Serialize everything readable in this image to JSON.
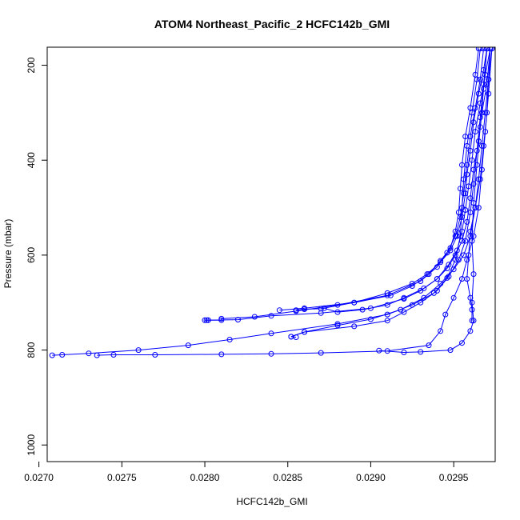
{
  "chart_data": {
    "type": "line",
    "title": "ATOM4 Northeast_Pacific_2 HCFC142b_GMI",
    "xlabel": "HCFC142b_GMI",
    "ylabel": "Pressure (mbar)",
    "xlim": [
      0.02705,
      0.02975
    ],
    "ylim": [
      1035,
      162
    ],
    "y_reversed": true,
    "xticks": [
      0.027,
      0.0275,
      0.028,
      0.0285,
      0.029,
      0.0295
    ],
    "xtick_labels": [
      "0.0270",
      "0.0275",
      "0.0280",
      "0.0285",
      "0.0290",
      "0.0295"
    ],
    "yticks": [
      200,
      400,
      600,
      800,
      1000
    ],
    "ytick_labels": [
      "200",
      "400",
      "600",
      "800",
      "1000"
    ],
    "color": "#0000ff",
    "markers": "open-circle",
    "series": [
      {
        "points": [
          [
            0.0297,
            165
          ],
          [
            0.02968,
            210
          ],
          [
            0.02965,
            260
          ],
          [
            0.02962,
            320
          ],
          [
            0.0296,
            380
          ],
          [
            0.02958,
            430
          ],
          [
            0.02957,
            470
          ],
          [
            0.02955,
            520
          ],
          [
            0.02952,
            560
          ],
          [
            0.02948,
            590
          ],
          [
            0.02942,
            615
          ],
          [
            0.02934,
            640
          ],
          [
            0.02925,
            660
          ],
          [
            0.0291,
            680
          ],
          [
            0.0289,
            700
          ],
          [
            0.0287,
            713
          ],
          [
            0.0286,
            714
          ],
          [
            0.02855,
            716
          ]
        ]
      },
      {
        "points": [
          [
            0.02972,
            165
          ],
          [
            0.0297,
            240
          ],
          [
            0.02967,
            300
          ],
          [
            0.02965,
            360
          ],
          [
            0.02962,
            420
          ],
          [
            0.0296,
            480
          ],
          [
            0.02958,
            530
          ],
          [
            0.02955,
            570
          ],
          [
            0.02951,
            600
          ],
          [
            0.02946,
            628
          ],
          [
            0.0294,
            650
          ],
          [
            0.02932,
            670
          ],
          [
            0.0292,
            690
          ],
          [
            0.0291,
            705
          ],
          [
            0.02895,
            715
          ],
          [
            0.0288,
            720
          ],
          [
            0.02872,
            712
          ]
        ]
      },
      {
        "points": [
          [
            0.02965,
            165
          ],
          [
            0.02963,
            220
          ],
          [
            0.0296,
            290
          ],
          [
            0.02957,
            350
          ],
          [
            0.02955,
            410
          ],
          [
            0.02954,
            460
          ],
          [
            0.02953,
            510
          ],
          [
            0.02951,
            550
          ],
          [
            0.02948,
            585
          ],
          [
            0.02942,
            612
          ],
          [
            0.02935,
            640
          ],
          [
            0.02925,
            665
          ],
          [
            0.02912,
            685
          ],
          [
            0.0289,
            700
          ],
          [
            0.0286,
            712
          ],
          [
            0.02845,
            716
          ]
        ]
      },
      {
        "points": [
          [
            0.02968,
            165
          ],
          [
            0.02966,
            230
          ],
          [
            0.02963,
            290
          ],
          [
            0.0296,
            350
          ],
          [
            0.02958,
            410
          ],
          [
            0.02956,
            470
          ],
          [
            0.02954,
            520
          ],
          [
            0.02951,
            560
          ],
          [
            0.02946,
            595
          ],
          [
            0.0294,
            625
          ],
          [
            0.0293,
            655
          ],
          [
            0.0291,
            685
          ],
          [
            0.0288,
            705
          ],
          [
            0.02855,
            718
          ],
          [
            0.0283,
            730
          ],
          [
            0.0281,
            734
          ],
          [
            0.0281,
            737
          ],
          [
            0.02802,
            737
          ],
          [
            0.02801,
            737
          ]
        ]
      },
      {
        "points": [
          [
            0.02972,
            165
          ],
          [
            0.02969,
            220
          ],
          [
            0.02966,
            280
          ],
          [
            0.02963,
            340
          ],
          [
            0.02961,
            400
          ],
          [
            0.02959,
            455
          ],
          [
            0.02957,
            505
          ],
          [
            0.02955,
            550
          ],
          [
            0.02952,
            590
          ],
          [
            0.02947,
            620
          ],
          [
            0.0294,
            650
          ],
          [
            0.0293,
            675
          ],
          [
            0.0292,
            692
          ],
          [
            0.029,
            712
          ],
          [
            0.0287,
            722
          ],
          [
            0.0284,
            728
          ],
          [
            0.0282,
            736
          ],
          [
            0.028,
            737
          ],
          [
            0.02802,
            737
          ]
        ]
      },
      {
        "points": [
          [
            0.02973,
            165
          ],
          [
            0.02971,
            230
          ],
          [
            0.02969,
            300
          ],
          [
            0.02967,
            370
          ],
          [
            0.02965,
            440
          ],
          [
            0.02963,
            500
          ],
          [
            0.0296,
            560
          ],
          [
            0.02956,
            600
          ],
          [
            0.0295,
            630
          ],
          [
            0.02942,
            660
          ],
          [
            0.02932,
            690
          ],
          [
            0.02918,
            715
          ],
          [
            0.029,
            735
          ],
          [
            0.0288,
            748
          ],
          [
            0.0286,
            762
          ],
          [
            0.02852,
            772
          ],
          [
            0.02855,
            773
          ]
        ]
      },
      {
        "points": [
          [
            0.0297,
            165
          ],
          [
            0.02968,
            240
          ],
          [
            0.02966,
            310
          ],
          [
            0.02964,
            380
          ],
          [
            0.02962,
            450
          ],
          [
            0.0296,
            510
          ],
          [
            0.02957,
            570
          ],
          [
            0.02953,
            610
          ],
          [
            0.02947,
            645
          ],
          [
            0.0294,
            675
          ],
          [
            0.0293,
            700
          ],
          [
            0.0292,
            720
          ],
          [
            0.0291,
            738
          ],
          [
            0.0289,
            750
          ],
          [
            0.0286,
            762
          ],
          [
            0.02852,
            772
          ]
        ]
      },
      {
        "points": [
          [
            0.02966,
            165
          ],
          [
            0.02964,
            230
          ],
          [
            0.02961,
            300
          ],
          [
            0.02958,
            370
          ],
          [
            0.02956,
            440
          ],
          [
            0.02955,
            500
          ],
          [
            0.02954,
            560
          ],
          [
            0.02951,
            610
          ],
          [
            0.02946,
            648
          ],
          [
            0.02938,
            680
          ],
          [
            0.02925,
            705
          ],
          [
            0.0291,
            725
          ],
          [
            0.0288,
            745
          ],
          [
            0.0284,
            765
          ],
          [
            0.02815,
            778
          ],
          [
            0.0279,
            790
          ],
          [
            0.0276,
            800
          ],
          [
            0.0273,
            807
          ],
          [
            0.02714,
            810
          ],
          [
            0.02708,
            811
          ]
        ]
      },
      {
        "points": [
          [
            0.0297,
            165
          ],
          [
            0.02968,
            250
          ],
          [
            0.02966,
            330
          ],
          [
            0.02964,
            410
          ],
          [
            0.02962,
            490
          ],
          [
            0.02961,
            570
          ],
          [
            0.02962,
            640
          ],
          [
            0.02961,
            700
          ],
          [
            0.02962,
            738
          ],
          [
            0.0296,
            760
          ],
          [
            0.02955,
            785
          ],
          [
            0.02948,
            800
          ],
          [
            0.0293,
            804
          ],
          [
            0.0292,
            805
          ],
          [
            0.02905,
            801
          ]
        ]
      },
      {
        "points": [
          [
            0.02973,
            165
          ],
          [
            0.02971,
            260
          ],
          [
            0.02969,
            340
          ],
          [
            0.02967,
            420
          ],
          [
            0.02965,
            500
          ],
          [
            0.02962,
            560
          ],
          [
            0.02958,
            610
          ],
          [
            0.02955,
            650
          ],
          [
            0.0295,
            690
          ],
          [
            0.02945,
            725
          ],
          [
            0.02942,
            760
          ],
          [
            0.02935,
            790
          ],
          [
            0.0291,
            802
          ],
          [
            0.0287,
            806
          ],
          [
            0.0284,
            808
          ],
          [
            0.0281,
            809
          ],
          [
            0.0277,
            810
          ],
          [
            0.02745,
            810
          ],
          [
            0.02735,
            811
          ]
        ]
      },
      {
        "points": [
          [
            0.02972,
            165
          ],
          [
            0.02971,
            230
          ],
          [
            0.0297,
            300
          ],
          [
            0.02968,
            370
          ],
          [
            0.02966,
            440
          ],
          [
            0.02963,
            500
          ],
          [
            0.0296,
            550
          ],
          [
            0.02959,
            600
          ],
          [
            0.02958,
            650
          ],
          [
            0.0296,
            690
          ],
          [
            0.02961,
            715
          ],
          [
            0.02961,
            738
          ]
        ]
      }
    ]
  }
}
